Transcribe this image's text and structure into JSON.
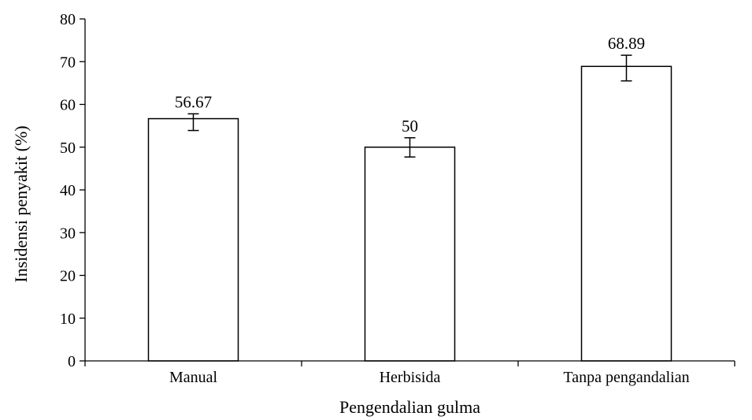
{
  "chart_data": {
    "type": "bar",
    "categories": [
      "Manual",
      "Herbisida",
      "Tanpa pengandalian"
    ],
    "values": [
      56.67,
      50,
      68.89
    ],
    "data_labels": [
      "56.67",
      "50",
      "68.89"
    ],
    "error_low": [
      53.9,
      47.7,
      65.5
    ],
    "error_high": [
      57.8,
      52.2,
      71.5
    ],
    "xlabel": "Pengendalian gulma",
    "ylabel": "Insidensi penyakit (%)",
    "ylim": [
      0,
      80
    ],
    "yticks": [
      0,
      10,
      20,
      30,
      40,
      50,
      60,
      70,
      80
    ],
    "grid": false,
    "legend": "none",
    "bar_fill": "#ffffff",
    "bar_stroke": "#000000"
  }
}
